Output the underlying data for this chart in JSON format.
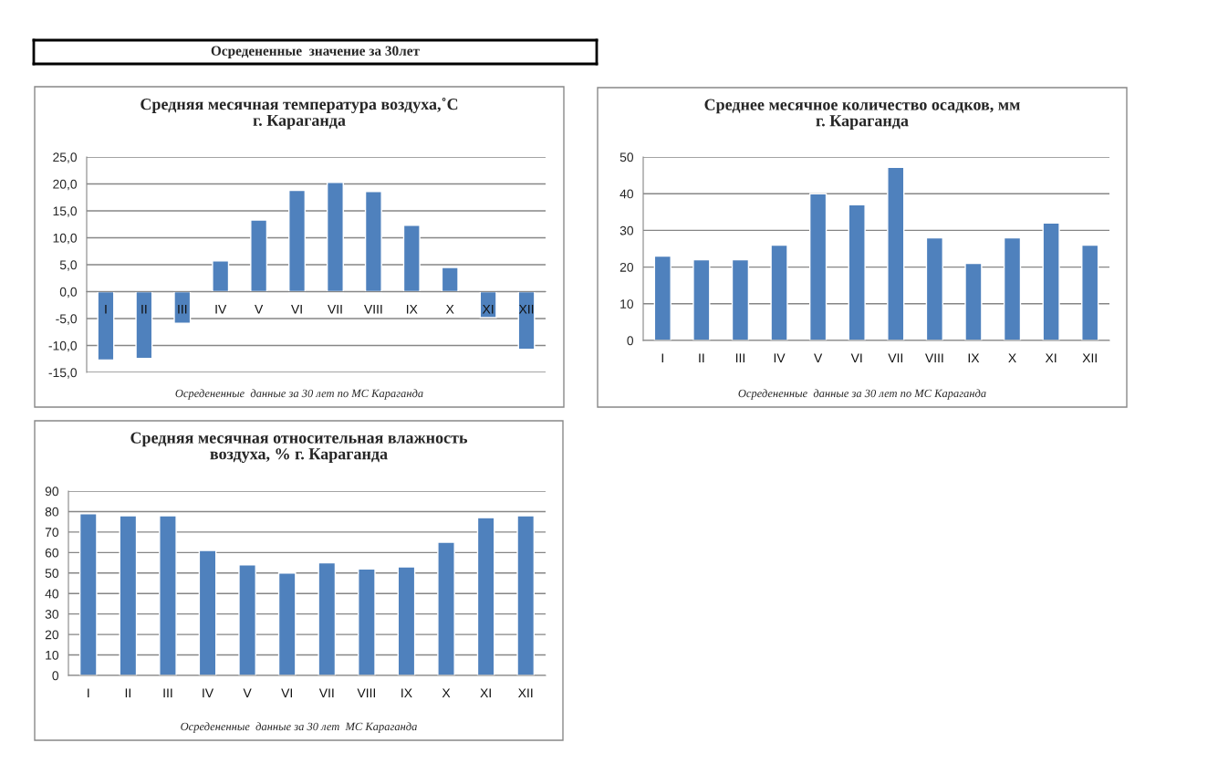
{
  "chart_data": [
    {
      "type": "other",
      "title": "Осредененные  значение за 30лет"
    },
    {
      "type": "bar",
      "title": "Средняя месячная температура воздуха,˚С\nг. Караганда",
      "categories": [
        "I",
        "II",
        "III",
        "IV",
        "V",
        "VI",
        "VII",
        "VIII",
        "IX",
        "X",
        "XI",
        "XII"
      ],
      "values": [
        -12.7,
        -12.4,
        -5.9,
        5.7,
        13.3,
        18.8,
        20.3,
        18.6,
        12.3,
        4.5,
        -4.8,
        -10.7
      ],
      "color": "#4f81bd",
      "ylim": [
        -15,
        25
      ],
      "yticks": [
        {
          "value": -15,
          "label": "-15,0"
        },
        {
          "value": -10,
          "label": "-10,0"
        },
        {
          "value": -5,
          "label": "-5,0"
        },
        {
          "value": 0,
          "label": "0,0"
        },
        {
          "value": 5,
          "label": "5,0"
        },
        {
          "value": 10,
          "label": "10,0"
        },
        {
          "value": 15,
          "label": "15,0"
        },
        {
          "value": 20,
          "label": "20,0"
        },
        {
          "value": 25,
          "label": "25,0"
        }
      ],
      "grid": "y",
      "annotations": [
        "Осредененные  данные за 30 лет по МС Караганда"
      ]
    },
    {
      "type": "bar",
      "title": "Среднее месячное количество осадков, мм\nг. Караганда",
      "categories": [
        "I",
        "II",
        "III",
        "IV",
        "V",
        "VI",
        "VII",
        "VIII",
        "IX",
        "X",
        "XI",
        "XII"
      ],
      "values": [
        23,
        22,
        22,
        26,
        40,
        37,
        47.2,
        28,
        21,
        28,
        32,
        26
      ],
      "color": "#4f81bd",
      "ylim": [
        0,
        50
      ],
      "yticks": [
        0,
        10,
        20,
        30,
        40,
        50
      ],
      "grid": "y",
      "annotations": [
        "Осредененные  данные за 30 лет по МС Караганда"
      ]
    },
    {
      "type": "bar",
      "title": "Средняя месячная относительная влажность\nвоздуха, % г. Караганда",
      "categories": [
        "I",
        "II",
        "III",
        "IV",
        "V",
        "VI",
        "VII",
        "VIII",
        "IX",
        "X",
        "XI",
        "XII"
      ],
      "values": [
        79,
        78,
        78,
        61,
        54,
        50,
        55,
        52,
        53,
        65,
        77,
        78
      ],
      "color": "#4f81bd",
      "ylim": [
        0,
        90
      ],
      "yticks": [
        0,
        10,
        20,
        30,
        40,
        50,
        60,
        70,
        80,
        90
      ],
      "grid": "y",
      "annotations": [
        "Осредененные  данные за 30 лет  МС Караганда"
      ]
    }
  ]
}
